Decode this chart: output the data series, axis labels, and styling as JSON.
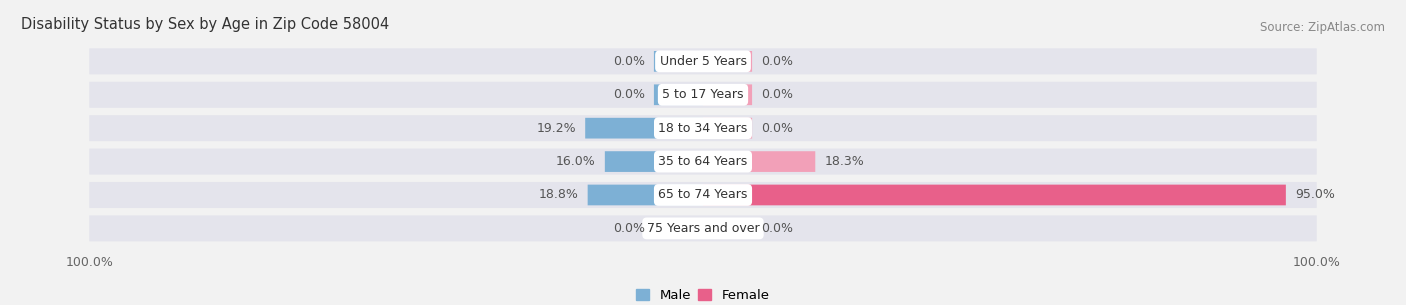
{
  "title": "Disability Status by Sex by Age in Zip Code 58004",
  "source": "Source: ZipAtlas.com",
  "categories": [
    "Under 5 Years",
    "5 to 17 Years",
    "18 to 34 Years",
    "35 to 64 Years",
    "65 to 74 Years",
    "75 Years and over"
  ],
  "male_values": [
    0.0,
    0.0,
    19.2,
    16.0,
    18.8,
    0.0
  ],
  "female_values": [
    0.0,
    0.0,
    0.0,
    18.3,
    95.0,
    0.0
  ],
  "male_color": "#7db0d5",
  "female_color": "#f2a0b8",
  "female_color_vivid": "#e8608a",
  "bar_bg_color": "#e4e4ec",
  "stub_size": 8.0,
  "max_value": 100.0,
  "figure_bg_color": "#f2f2f2",
  "title_fontsize": 10.5,
  "source_fontsize": 8.5,
  "label_fontsize": 9,
  "category_fontsize": 9,
  "legend_fontsize": 9.5
}
